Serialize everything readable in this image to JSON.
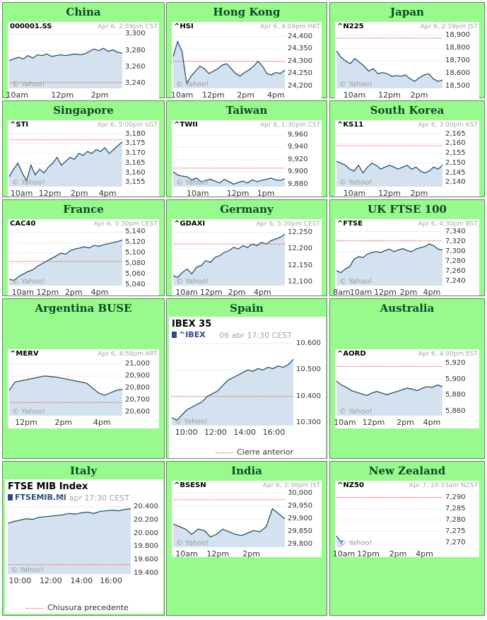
{
  "colors": {
    "cell_bg": "#98f98c",
    "header_text": "#0a4a26",
    "fill": "#d4e2ef",
    "line": "#26506e",
    "prev_close": "#e05030"
  },
  "watermark": "© Yahoo!",
  "markets": [
    {
      "region": "China",
      "symbol": "000001.SS",
      "timestamp": "Apr 6, 2:59pm CST",
      "chart_data": {
        "type": "area",
        "ylim": [
          3234,
          3303
        ],
        "y_ticks": [
          "3,300",
          "3,280",
          "3,260",
          "3,240"
        ],
        "y_tick_values": [
          3300,
          3280,
          3260,
          3240
        ],
        "x_ticks": [
          "10am",
          "12pm",
          "2pm"
        ],
        "x_tick_pos": [
          0.07,
          0.47,
          0.8
        ],
        "prev_close": 3241,
        "values": [
          3268,
          3270,
          3272,
          3270,
          3274,
          3271,
          3275,
          3274,
          3276,
          3273,
          3274,
          3275,
          3274,
          3275,
          3276,
          3275,
          3276,
          3279,
          3282,
          3280,
          3283,
          3279,
          3281,
          3278,
          3277
        ]
      }
    },
    {
      "region": "Hong Kong",
      "symbol": "^HSI",
      "timestamp": "Apr 6, 4:09pm HKT",
      "chart_data": {
        "type": "area",
        "ylim": [
          24190,
          24420
        ],
        "y_ticks": [
          "24,400",
          "24,350",
          "24,300",
          "24,250",
          "24,200"
        ],
        "y_tick_values": [
          24400,
          24350,
          24300,
          24250,
          24200
        ],
        "x_ticks": [
          "10am",
          "12pm",
          "2pm",
          "4pm"
        ],
        "x_tick_pos": [
          0.08,
          0.36,
          0.65,
          0.92
        ],
        "prev_close": 24300,
        "values": [
          24320,
          24380,
          24340,
          24210,
          24240,
          24260,
          24280,
          24270,
          24250,
          24260,
          24270,
          24285,
          24290,
          24270,
          24250,
          24240,
          24255,
          24265,
          24280,
          24300,
          24280,
          24250,
          24245,
          24255,
          24250,
          24265
        ]
      }
    },
    {
      "region": "Japan",
      "symbol": "^N225",
      "timestamp": "Apr 6, 2:59pm JST",
      "chart_data": {
        "type": "area",
        "ylim": [
          18485,
          18930
        ],
        "y_ticks": [
          "18,900",
          "18,800",
          "18,700",
          "18,600",
          "18,500"
        ],
        "y_tick_values": [
          18900,
          18800,
          18700,
          18600,
          18500
        ],
        "x_ticks": [
          "10am",
          "12pm",
          "2pm"
        ],
        "x_tick_pos": [
          0.17,
          0.5,
          0.78
        ],
        "prev_close": 18880,
        "values": [
          18780,
          18730,
          18700,
          18680,
          18720,
          18690,
          18660,
          18620,
          18640,
          18600,
          18610,
          18600,
          18580,
          18585,
          18580,
          18590,
          18560,
          18540,
          18570,
          18590,
          18600,
          18560,
          18540,
          18550
        ]
      }
    },
    {
      "region": "Singapore",
      "symbol": "^STI",
      "timestamp": "Apr 6, 5:00pm SGT",
      "chart_data": {
        "type": "area",
        "ylim": [
          3153,
          3182
        ],
        "y_ticks": [
          "3,180",
          "3,175",
          "3,170",
          "3,165",
          "3,160",
          "3,155"
        ],
        "y_tick_values": [
          3180,
          3175,
          3170,
          3165,
          3160,
          3155
        ],
        "x_ticks": [
          "10am",
          "12pm",
          "2pm",
          "4pm"
        ],
        "x_tick_pos": [
          0.11,
          0.36,
          0.62,
          0.87
        ],
        "prev_close": 3177,
        "values": [
          3158,
          3162,
          3165,
          3160,
          3156,
          3164,
          3159,
          3162,
          3160,
          3163,
          3165,
          3168,
          3164,
          3166,
          3168,
          3167,
          3170,
          3169,
          3171,
          3170,
          3172,
          3171,
          3173,
          3170,
          3172,
          3174,
          3176
        ]
      }
    },
    {
      "region": "Taiwan",
      "symbol": "^TWII",
      "timestamp": "Apr 6, 1:30pm CST",
      "chart_data": {
        "type": "area",
        "ylim": [
          9876,
          9968
        ],
        "y_ticks": [
          "9,960",
          "9,940",
          "9,920",
          "9,900",
          "9,880"
        ],
        "y_tick_values": [
          9960,
          9940,
          9920,
          9900,
          9880
        ],
        "x_ticks": [
          "10am",
          "12pm",
          "1pm"
        ],
        "x_tick_pos": [
          0.22,
          0.58,
          0.83
        ],
        "prev_close": 9906,
        "values": [
          9900,
          9895,
          9893,
          9892,
          9887,
          9890,
          9884,
          9886,
          9888,
          9885,
          9882,
          9888,
          9884,
          9880,
          9883,
          9885,
          9882,
          9887,
          9884,
          9886,
          9888,
          9890,
          9887,
          9886,
          9889
        ]
      }
    },
    {
      "region": "South Korea",
      "symbol": "^KS11",
      "timestamp": "Apr 6, 3:00pm KST",
      "chart_data": {
        "type": "area",
        "ylim": [
          2138,
          2167
        ],
        "y_ticks": [
          "2,165",
          "2,160",
          "2,155",
          "2,150",
          "2,145",
          "2,140"
        ],
        "y_tick_values": [
          2165,
          2160,
          2155,
          2150,
          2145,
          2140
        ],
        "x_ticks": [
          "10am",
          "12pm",
          "2pm"
        ],
        "x_tick_pos": [
          0.17,
          0.5,
          0.78
        ],
        "prev_close": 2159,
        "values": [
          2151,
          2150,
          2149,
          2147,
          2146,
          2149,
          2145,
          2148,
          2150,
          2149,
          2147,
          2148,
          2149,
          2148,
          2147,
          2148,
          2149,
          2147,
          2148,
          2146,
          2145,
          2146,
          2148,
          2147,
          2149
        ]
      }
    },
    {
      "region": "France",
      "symbol": "CAC40",
      "timestamp": "Apr 6, 5:30pm CEST",
      "chart_data": {
        "type": "area",
        "ylim": [
          5038,
          5146
        ],
        "y_ticks": [
          "5,140",
          "5,120",
          "5,100",
          "5,080",
          "5,060",
          "5,040"
        ],
        "y_tick_values": [
          5140,
          5120,
          5100,
          5080,
          5060,
          5040
        ],
        "x_ticks": [
          "10am",
          "12pm",
          "2pm",
          "4pm"
        ],
        "x_tick_pos": [
          0.12,
          0.34,
          0.57,
          0.8
        ],
        "prev_close": 5084,
        "values": [
          5050,
          5048,
          5055,
          5060,
          5065,
          5068,
          5075,
          5080,
          5085,
          5090,
          5095,
          5100,
          5098,
          5105,
          5108,
          5110,
          5112,
          5110,
          5115,
          5113,
          5116,
          5118,
          5120,
          5122,
          5125
        ]
      }
    },
    {
      "region": "Germany",
      "symbol": "^GDAXI",
      "timestamp": "Apr 6, 5:30pm CEST",
      "chart_data": {
        "type": "area",
        "ylim": [
          12090,
          12260
        ],
        "y_ticks": [
          "12,250",
          "12,200",
          "12,150",
          "12,100"
        ],
        "y_tick_values": [
          12250,
          12200,
          12150,
          12100
        ],
        "x_ticks": [
          "10am",
          "12pm",
          "2pm",
          "4pm"
        ],
        "x_tick_pos": [
          0.12,
          0.34,
          0.57,
          0.8
        ],
        "prev_close": 12215,
        "values": [
          12120,
          12115,
          12130,
          12140,
          12125,
          12145,
          12150,
          12165,
          12160,
          12175,
          12180,
          12190,
          12195,
          12205,
          12200,
          12210,
          12205,
          12215,
          12210,
          12220,
          12215,
          12225,
          12230,
          12235,
          12245
        ]
      }
    },
    {
      "region": "UK FTSE 100",
      "symbol": "^FTSE",
      "timestamp": "Apr 6, 4:30pm BST",
      "chart_data": {
        "type": "area",
        "ylim": [
          7232,
          7345
        ],
        "y_ticks": [
          "7,340",
          "7,320",
          "7,300",
          "7,280",
          "7,260",
          "7,240"
        ],
        "y_tick_values": [
          7340,
          7320,
          7300,
          7280,
          7260,
          7240
        ],
        "x_ticks": [
          "8am",
          "10am",
          "12pm",
          "2pm",
          "4pm"
        ],
        "x_tick_pos": [
          0.05,
          0.23,
          0.46,
          0.68,
          0.9
        ],
        "prev_close": 7322,
        "values": [
          7262,
          7258,
          7265,
          7270,
          7285,
          7290,
          7288,
          7295,
          7298,
          7300,
          7298,
          7302,
          7305,
          7300,
          7303,
          7306,
          7302,
          7300,
          7305,
          7308,
          7310,
          7315,
          7312,
          7305,
          7303
        ]
      }
    },
    {
      "region": "Argentina BUSE",
      "symbol": "^MERV",
      "timestamp": "Apr 6, 4:58pm ART",
      "chart_data": {
        "type": "area",
        "ylim": [
          20570,
          21040
        ],
        "y_ticks": [
          "21,000",
          "20,900",
          "20,800",
          "20,700",
          "20,600"
        ],
        "y_tick_values": [
          21000,
          20900,
          20800,
          20700,
          20600
        ],
        "x_ticks": [
          "12pm",
          "2pm",
          "4pm"
        ],
        "x_tick_pos": [
          0.15,
          0.48,
          0.82
        ],
        "prev_close": 20680,
        "values": [
          20780,
          20850,
          20860,
          20870,
          20880,
          20890,
          20900,
          20895,
          20890,
          20880,
          20870,
          20860,
          20850,
          20840,
          20800,
          20760,
          20740,
          20760,
          20780,
          20790
        ]
      }
    },
    {
      "region": "Spain",
      "title": "IBEX 35",
      "symbol": "^IBEX",
      "timestamp": "06 abr 17:30 CEST",
      "legend": "Cierre anterior",
      "chart_data": {
        "type": "area",
        "ylim": [
          10290,
          10605
        ],
        "y_ticks": [
          "10.600",
          "10.500",
          "10.400",
          "10.300"
        ],
        "y_tick_values": [
          10600,
          10500,
          10400,
          10300
        ],
        "x_ticks": [
          "10:00",
          "12:00",
          "14:00",
          "16:00"
        ],
        "x_tick_pos": [
          0.12,
          0.36,
          0.6,
          0.84
        ],
        "prev_close": 10400,
        "values": [
          10320,
          10310,
          10330,
          10350,
          10360,
          10370,
          10380,
          10400,
          10410,
          10420,
          10440,
          10460,
          10470,
          10480,
          10490,
          10500,
          10495,
          10505,
          10500,
          10510,
          10505,
          10515,
          10510,
          10520,
          10540
        ]
      }
    },
    {
      "region": "Australia",
      "symbol": "^AORD",
      "timestamp": "Apr 6, 4:00pm EST",
      "chart_data": {
        "type": "area",
        "ylim": [
          5855,
          5925
        ],
        "y_ticks": [
          "5,920",
          "5,900",
          "5,880",
          "5,860"
        ],
        "y_tick_values": [
          5920,
          5900,
          5880,
          5860
        ],
        "x_ticks": [
          "10am",
          "12pm",
          "2pm",
          "4pm"
        ],
        "x_tick_pos": [
          0.08,
          0.35,
          0.65,
          0.9
        ],
        "prev_close": 5916,
        "values": [
          5898,
          5893,
          5890,
          5886,
          5884,
          5882,
          5880,
          5883,
          5885,
          5883,
          5881,
          5883,
          5885,
          5887,
          5889,
          5888,
          5886,
          5889,
          5891,
          5890,
          5893,
          5891
        ]
      }
    },
    {
      "region": "Italy",
      "title": "FTSE MIB Index",
      "symbol": "FTSEMIB.MI",
      "timestamp": "06 apr 17:30 CEST",
      "legend": "Chiusura precedente",
      "chart_data": {
        "type": "area",
        "ylim": [
          19390,
          20430
        ],
        "y_ticks": [
          "20.400",
          "20.200",
          "20.000",
          "19.800",
          "19.600",
          "19.400"
        ],
        "y_tick_values": [
          20400,
          20200,
          20000,
          19800,
          19600,
          19400
        ],
        "x_ticks": [
          "10:00",
          "12:00",
          "14:00",
          "16:00"
        ],
        "x_tick_pos": [
          0.1,
          0.35,
          0.6,
          0.84
        ],
        "prev_close": 19530,
        "values": [
          20150,
          20180,
          20200,
          20220,
          20210,
          20240,
          20250,
          20260,
          20270,
          20280,
          20300,
          20290,
          20310,
          20320,
          20300,
          20330,
          20340,
          20350,
          20340,
          20360,
          20370
        ]
      }
    },
    {
      "region": "India",
      "symbol": "^BSESN",
      "timestamp": "Apr 6, 3:30pm IST",
      "chart_data": {
        "type": "area",
        "ylim": [
          29790,
          30010
        ],
        "y_ticks": [
          "30,000",
          "29,950",
          "29,900",
          "29,850",
          "29,800"
        ],
        "y_tick_values": [
          30000,
          29950,
          29900,
          29850,
          29800
        ],
        "x_ticks": [
          "10am",
          "12pm",
          "2pm"
        ],
        "x_tick_pos": [
          0.12,
          0.4,
          0.7
        ],
        "prev_close": 29975,
        "values": [
          29880,
          29870,
          29860,
          29840,
          29860,
          29855,
          29830,
          29840,
          29860,
          29850,
          29840,
          29835,
          29845,
          29855,
          29850,
          29870,
          29940,
          29920,
          29900
        ]
      }
    },
    {
      "region": "New Zealand",
      "symbol": "^NZ50",
      "timestamp": "Apr 7, 10:33am NZST",
      "chart_data": {
        "type": "area",
        "ylim": [
          7268,
          7293
        ],
        "y_ticks": [
          "7,290",
          "7,285",
          "7,280",
          "7,275",
          "7,270"
        ],
        "y_tick_values": [
          7290,
          7285,
          7280,
          7275,
          7270
        ],
        "x_ticks": [
          "10am",
          "12pm",
          "2pm",
          "4pm"
        ],
        "x_tick_pos": [
          0.07,
          0.3,
          0.58,
          0.83
        ],
        "prev_close": 7290,
        "values": [
          7273,
          7272,
          7271,
          7270,
          7271
        ]
      }
    }
  ]
}
